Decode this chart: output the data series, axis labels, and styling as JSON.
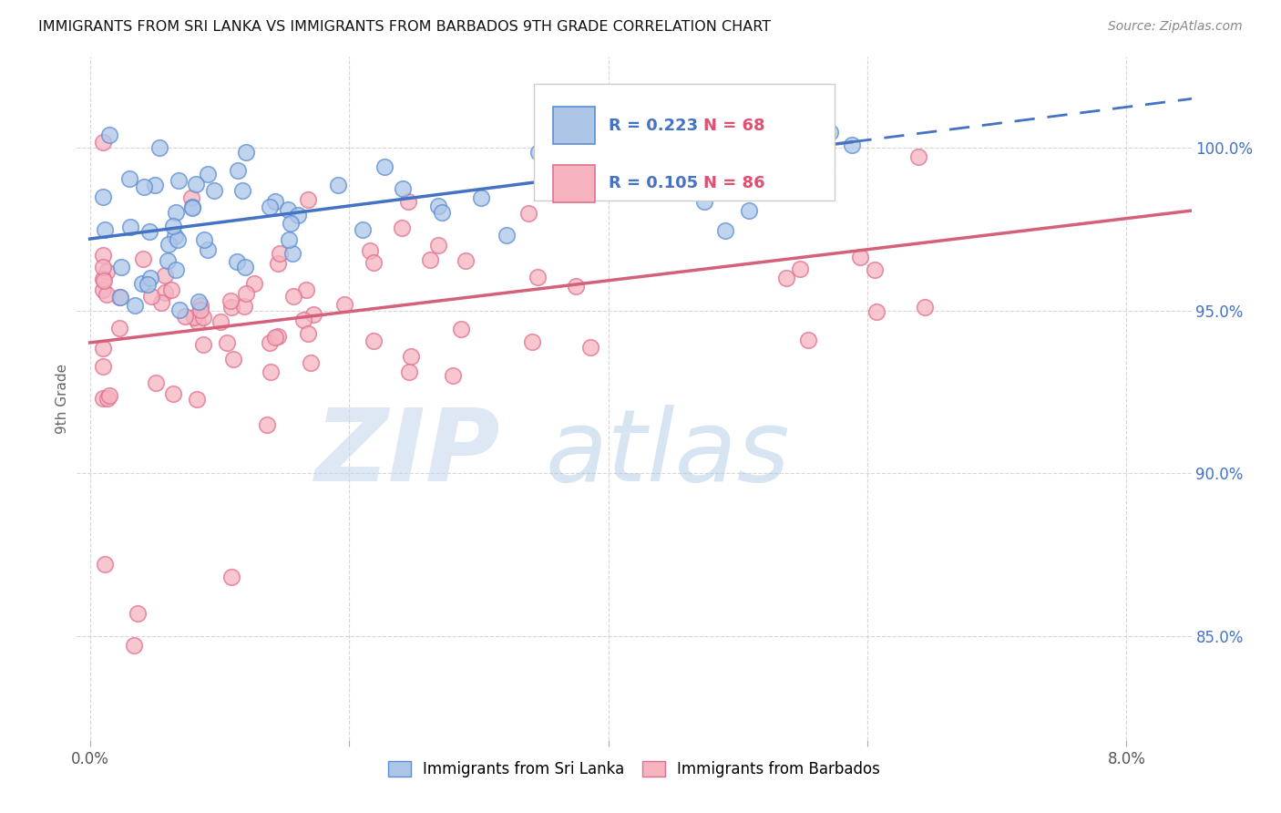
{
  "title": "IMMIGRANTS FROM SRI LANKA VS IMMIGRANTS FROM BARBADOS 9TH GRADE CORRELATION CHART",
  "source": "Source: ZipAtlas.com",
  "ylabel": "9th Grade",
  "y_ticks": [
    "85.0%",
    "90.0%",
    "95.0%",
    "100.0%"
  ],
  "y_tick_vals": [
    0.85,
    0.9,
    0.95,
    1.0
  ],
  "x_tick_vals": [
    0.0,
    0.02,
    0.04,
    0.06,
    0.08
  ],
  "x_tick_labels": [
    "0.0%",
    "",
    "",
    "",
    "8.0%"
  ],
  "x_lim": [
    -0.001,
    0.085
  ],
  "y_lim": [
    0.818,
    1.028
  ],
  "legend_r1": "R = 0.223",
  "legend_n1": "N = 68",
  "legend_r2": "R = 0.105",
  "legend_n2": "N = 86",
  "color_sri_lanka_fill": "#adc6e8",
  "color_sri_lanka_edge": "#5b8dd4",
  "color_barbados_fill": "#f5b3c0",
  "color_barbados_edge": "#e07090",
  "color_line_sri_lanka": "#4472c4",
  "color_line_barbados": "#d4607a",
  "grid_color": "#cccccc",
  "text_color": "#333333",
  "right_axis_color": "#4472c4",
  "watermark_zip_color": "#c8d8ee",
  "watermark_atlas_color": "#a8c4e0",
  "sl_intercept": 0.972,
  "sl_slope": 0.55,
  "bar_intercept": 0.948,
  "bar_slope": 0.42
}
